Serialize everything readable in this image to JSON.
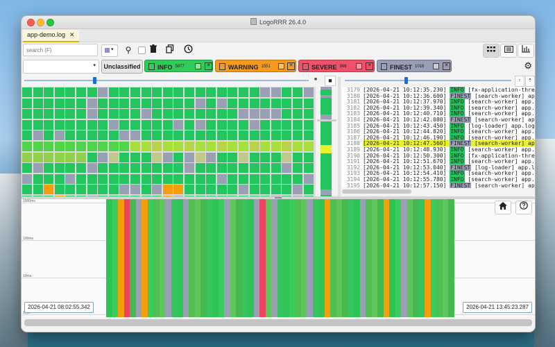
{
  "window": {
    "title": "LogoRRR 26.4.0"
  },
  "tabs": [
    {
      "label": "app-demo.log",
      "close": "✕"
    }
  ],
  "toolbar": {
    "search_placeholder": "search (F)",
    "accent_color": "#8e8ee0"
  },
  "filters": {
    "unclassified_label": "Unclassified",
    "chips": [
      {
        "label": "INFO",
        "count": "5877",
        "color": "#2fcc5a",
        "box": "#9be09e"
      },
      {
        "label": "WARNING",
        "count": "1551",
        "color": "#f59a1c",
        "box": "#f7c06a"
      },
      {
        "label": "SEVERE",
        "count": "966",
        "color": "#f0506a",
        "box": "#f69aa8"
      },
      {
        "label": "FINEST",
        "count": "1016",
        "color": "#9a9db5",
        "box": "#c9cbd8"
      }
    ]
  },
  "colors": {
    "info": "#22c55e",
    "warning": "#f59e0b",
    "severe": "#ef4460",
    "finest": "#9aa0b4",
    "highlight": "#e8f22a"
  },
  "log": {
    "lines": [
      {
        "num": "3179",
        "ts": "[2026-04-21 10:12:35.230]",
        "level": "INFO",
        "msg": " [fx-application-thread] a"
      },
      {
        "num": "3180",
        "ts": "[2026-04-21 10:12:36.600]",
        "level": "FINEST",
        "msg": " [search-worker] app.logo"
      },
      {
        "num": "3181",
        "ts": "[2026-04-21 10:12:37.970]",
        "level": "INFO",
        "msg": " [search-worker] app.logo"
      },
      {
        "num": "3182",
        "ts": "[2026-04-21 10:12:39.340]",
        "level": "INFO",
        "msg": " [search-worker] app.logo"
      },
      {
        "num": "3183",
        "ts": "[2026-04-21 10:12:40.710]",
        "level": "INFO",
        "msg": " [search-worker] app.logo"
      },
      {
        "num": "3184",
        "ts": "[2026-04-21 10:12:42.080]",
        "level": "FINEST",
        "msg": " [search-worker] app.lo"
      },
      {
        "num": "3185",
        "ts": "[2026-04-21 10:12:43.450]",
        "level": "INFO",
        "msg": " [log-loader] app.logorr"
      },
      {
        "num": "3186",
        "ts": "[2026-04-21 10:12:44.820]",
        "level": "INFO",
        "msg": " [search-worker] app.logo"
      },
      {
        "num": "3187",
        "ts": "[2026-04-21 10:12:46.190]",
        "level": "INFO",
        "msg": " [search-worker] app.logo"
      },
      {
        "num": "3188",
        "ts": "[2026-04-21 10:12:47.560]",
        "level": "FINEST",
        "msg": " [search-worker] app.logo",
        "highlight": true
      },
      {
        "num": "3189",
        "ts": "[2026-04-21 10:12:48.930]",
        "level": "INFO",
        "msg": " [search-worker] app.logo"
      },
      {
        "num": "3190",
        "ts": "[2026-04-21 10:12:50.300]",
        "level": "INFO",
        "msg": " [fx-application-thread] a"
      },
      {
        "num": "3191",
        "ts": "[2026-04-21 10:12:51.670]",
        "level": "INFO",
        "msg": " [search-worker] app.logo"
      },
      {
        "num": "3192",
        "ts": "[2026-04-21 10:12:53.040]",
        "level": "FINEST",
        "msg": " [log-loader] app.logorr"
      },
      {
        "num": "3193",
        "ts": "[2026-04-21 10:12:54.410]",
        "level": "INFO",
        "msg": " [search-worker] app.logo"
      },
      {
        "num": "3194",
        "ts": "[2026-04-21 10:12:55.780]",
        "level": "INFO",
        "msg": " [search-worker] app.logo"
      },
      {
        "num": "3195",
        "ts": "[2026-04-21 10:12:57.150]",
        "level": "FINEST",
        "msg": " [search-worker] app.logo"
      }
    ]
  },
  "timeline": {
    "axis_labels": [
      "1000ms",
      "100ms",
      "10ms",
      "1ms"
    ],
    "start": "2026-04-21 08:02:55.342",
    "end": "2026-04-21 13:45:23.287"
  }
}
